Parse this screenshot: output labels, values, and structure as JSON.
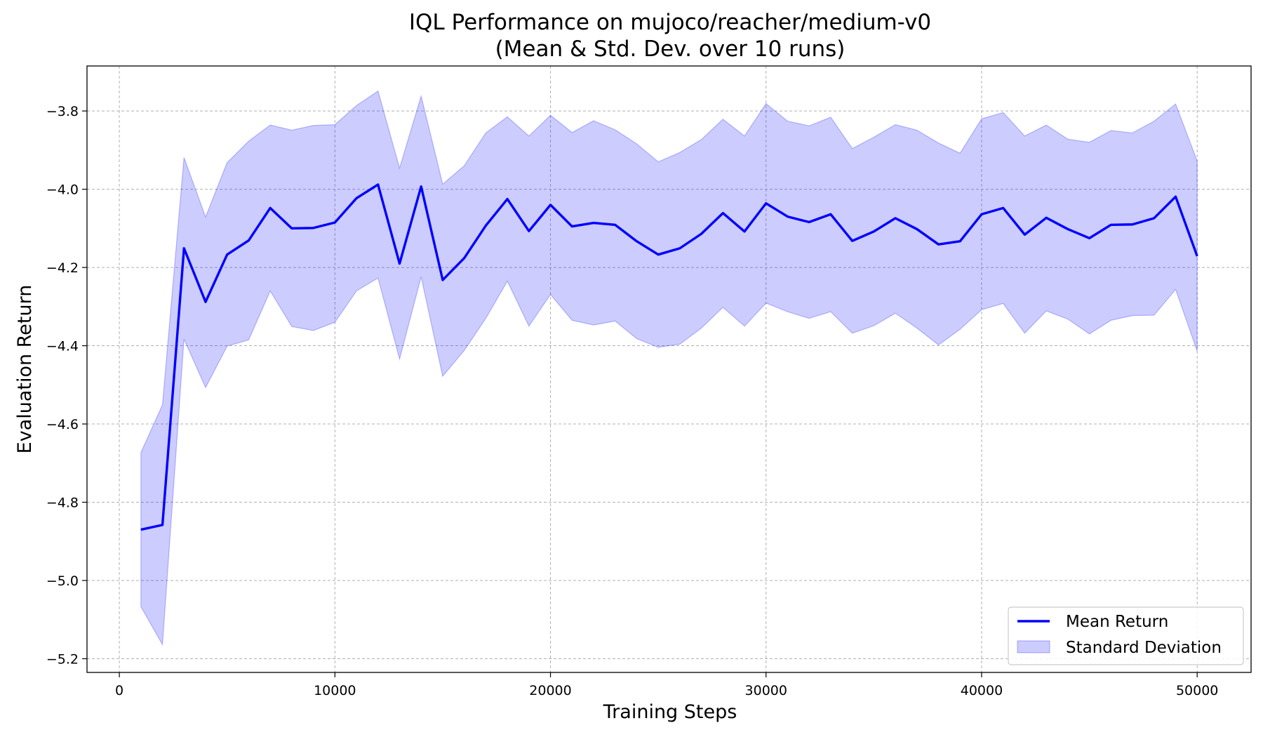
{
  "chart_data": {
    "type": "line",
    "title": "IQL Performance on mujoco/reacher/medium-v0",
    "subtitle": "(Mean & Std. Dev. over 10 runs)",
    "xlabel": "Training Steps",
    "ylabel": "Evaluation Return",
    "xlim": [
      -1500,
      52500
    ],
    "ylim": [
      -5.235,
      -3.685
    ],
    "xticks": [
      0,
      10000,
      20000,
      30000,
      40000,
      50000
    ],
    "xtick_labels": [
      "0",
      "10000",
      "20000",
      "30000",
      "40000",
      "50000"
    ],
    "yticks": [
      -3.8,
      -4.0,
      -4.2,
      -4.4,
      -4.6,
      -4.8,
      -5.0,
      -5.2
    ],
    "ytick_labels": [
      "−3.8",
      "−4.0",
      "−4.2",
      "−4.4",
      "−4.6",
      "−4.8",
      "−5.0",
      "−5.2"
    ],
    "grid": true,
    "legend_position": "bottom-right",
    "x": [
      1000,
      2000,
      3000,
      4000,
      5000,
      6000,
      7000,
      8000,
      9000,
      10000,
      11000,
      12000,
      13000,
      14000,
      15000,
      16000,
      17000,
      18000,
      19000,
      20000,
      21000,
      22000,
      23000,
      24000,
      25000,
      26000,
      27000,
      28000,
      29000,
      30000,
      31000,
      32000,
      33000,
      34000,
      35000,
      36000,
      37000,
      38000,
      39000,
      40000,
      41000,
      42000,
      43000,
      44000,
      45000,
      46000,
      47000,
      48000,
      49000,
      50000
    ],
    "series": [
      {
        "name": "Mean Return",
        "color": "#0000ff",
        "values": [
          -4.87,
          -4.858,
          -4.151,
          -4.288,
          -4.167,
          -4.131,
          -4.048,
          -4.1,
          -4.099,
          -4.085,
          -4.023,
          -3.988,
          -4.19,
          -3.993,
          -4.232,
          -4.176,
          -4.093,
          -4.025,
          -4.107,
          -4.04,
          -4.095,
          -4.086,
          -4.091,
          -4.133,
          -4.167,
          -4.151,
          -4.114,
          -4.061,
          -4.108,
          -4.036,
          -4.07,
          -4.084,
          -4.064,
          -4.132,
          -4.108,
          -4.074,
          -4.102,
          -4.141,
          -4.133,
          -4.064,
          -4.048,
          -4.116,
          -4.073,
          -4.102,
          -4.125,
          -4.091,
          -4.09,
          -4.074,
          -4.019,
          -4.171
        ]
      },
      {
        "name": "Standard Deviation",
        "type": "band",
        "color": "#0000ff",
        "fill_opacity": 0.2,
        "upper": [
          -4.673,
          -4.551,
          -3.919,
          -4.071,
          -3.932,
          -3.877,
          -3.836,
          -3.849,
          -3.837,
          -3.835,
          -3.786,
          -3.749,
          -3.946,
          -3.762,
          -3.987,
          -3.94,
          -3.856,
          -3.815,
          -3.864,
          -3.811,
          -3.855,
          -3.825,
          -3.848,
          -3.884,
          -3.93,
          -3.906,
          -3.873,
          -3.821,
          -3.864,
          -3.781,
          -3.826,
          -3.838,
          -3.816,
          -3.896,
          -3.867,
          -3.835,
          -3.849,
          -3.882,
          -3.908,
          -3.82,
          -3.804,
          -3.864,
          -3.836,
          -3.872,
          -3.88,
          -3.85,
          -3.856,
          -3.826,
          -3.782,
          -3.928
        ],
        "lower": [
          -5.067,
          -5.164,
          -4.383,
          -4.507,
          -4.401,
          -4.385,
          -4.26,
          -4.351,
          -4.361,
          -4.34,
          -4.26,
          -4.227,
          -4.434,
          -4.224,
          -4.478,
          -4.412,
          -4.33,
          -4.235,
          -4.35,
          -4.269,
          -4.335,
          -4.347,
          -4.337,
          -4.382,
          -4.404,
          -4.396,
          -4.355,
          -4.302,
          -4.35,
          -4.291,
          -4.313,
          -4.33,
          -4.313,
          -4.368,
          -4.349,
          -4.317,
          -4.355,
          -4.398,
          -4.358,
          -4.308,
          -4.292,
          -4.368,
          -4.311,
          -4.332,
          -4.37,
          -4.335,
          -4.323,
          -4.322,
          -4.256,
          -4.414
        ]
      }
    ]
  }
}
